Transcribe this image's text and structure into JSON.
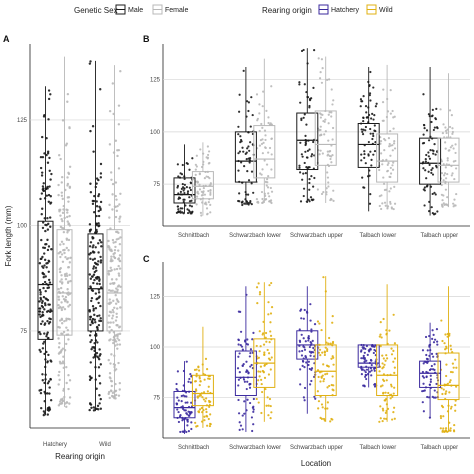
{
  "legend": {
    "sex_title": "Genetic Sex",
    "sex_items": [
      {
        "label": "Male",
        "color": "#1a1a1a"
      },
      {
        "label": "Female",
        "color": "#b8b8b8"
      }
    ],
    "origin_title": "Rearing origin",
    "origin_items": [
      {
        "label": "Hatchery",
        "color": "#3b2a9e"
      },
      {
        "label": "Wild",
        "color": "#e0b012"
      }
    ]
  },
  "chart_data": [
    {
      "panel": "A",
      "type": "box",
      "ylabel": "Fork length (mm)",
      "xlabel": "Rearing origin",
      "categories": [
        "Hatchery",
        "Wild"
      ],
      "ylim": [
        52,
        143
      ],
      "yticks": [
        75,
        100,
        125
      ],
      "grid": true,
      "series": [
        {
          "name": "Male",
          "color": "#1a1a1a",
          "boxes": [
            {
              "min": 55,
              "q1": 73,
              "median": 86,
              "q3": 101,
              "max": 133
            },
            {
              "min": 56,
              "q1": 75,
              "median": 85,
              "q3": 98,
              "max": 139
            }
          ]
        },
        {
          "name": "Female",
          "color": "#b8b8b8",
          "boxes": [
            {
              "min": 57,
              "q1": 74,
              "median": 84,
              "q3": 99,
              "max": 140
            },
            {
              "min": 59,
              "q1": 75,
              "median": 84,
              "q3": 99,
              "max": 138
            }
          ]
        }
      ]
    },
    {
      "panel": "B",
      "type": "box",
      "xlabel": "",
      "categories": [
        "Schnittbach",
        "Schwarzbach lower",
        "Schwarzbach upper",
        "Talbach lower",
        "Talbach upper"
      ],
      "ylim": [
        55,
        142
      ],
      "yticks": [
        75,
        100,
        125
      ],
      "grid": true,
      "series": [
        {
          "name": "Male",
          "color": "#1a1a1a",
          "boxes": [
            {
              "min": 61,
              "q1": 66,
              "median": 70,
              "q3": 78,
              "max": 94
            },
            {
              "min": 65,
              "q1": 76,
              "median": 86,
              "q3": 100,
              "max": 131
            },
            {
              "min": 66,
              "q1": 82,
              "median": 96,
              "q3": 109,
              "max": 140
            },
            {
              "min": 62,
              "q1": 83,
              "median": 94,
              "q3": 104,
              "max": 131
            },
            {
              "min": 60,
              "q1": 75,
              "median": 85,
              "q3": 97,
              "max": 131
            }
          ]
        },
        {
          "name": "Female",
          "color": "#b8b8b8",
          "boxes": [
            {
              "min": 60,
              "q1": 68,
              "median": 74,
              "q3": 81,
              "max": 95
            },
            {
              "min": 66,
              "q1": 78,
              "median": 87,
              "q3": 103,
              "max": 135
            },
            {
              "min": 66,
              "q1": 84,
              "median": 94,
              "q3": 110,
              "max": 136
            },
            {
              "min": 63,
              "q1": 76,
              "median": 86,
              "q3": 99,
              "max": 132
            },
            {
              "min": 64,
              "q1": 76,
              "median": 84,
              "q3": 97,
              "max": 128
            }
          ]
        }
      ]
    },
    {
      "panel": "C",
      "type": "box",
      "xlabel": "Location",
      "categories": [
        "Schnittbach",
        "Schwarzbach lower",
        "Schwarzbach upper",
        "Talbach lower",
        "Talbach upper"
      ],
      "ylim": [
        55,
        142
      ],
      "yticks": [
        75,
        100,
        125
      ],
      "grid": true,
      "series": [
        {
          "name": "Hatchery",
          "color": "#3b2a9e",
          "boxes": [
            {
              "min": 57,
              "q1": 65,
              "median": 70,
              "q3": 78,
              "max": 93
            },
            {
              "min": 58,
              "q1": 76,
              "median": 85,
              "q3": 98,
              "max": 130
            },
            {
              "min": 67,
              "q1": 94,
              "median": 101,
              "q3": 108,
              "max": 130
            },
            {
              "min": 80,
              "q1": 90,
              "median": 92,
              "q3": 101,
              "max": 101
            },
            {
              "min": 65,
              "q1": 80,
              "median": 87,
              "q3": 93,
              "max": 112
            }
          ]
        },
        {
          "name": "Wild",
          "color": "#e0b012",
          "boxes": [
            {
              "min": 60,
              "q1": 71,
              "median": 77,
              "q3": 86,
              "max": 110
            },
            {
              "min": 63,
              "q1": 80,
              "median": 92,
              "q3": 104,
              "max": 132
            },
            {
              "min": 63,
              "q1": 76,
              "median": 88,
              "q3": 101,
              "max": 135
            },
            {
              "min": 63,
              "q1": 76,
              "median": 86,
              "q3": 101,
              "max": 131
            },
            {
              "min": 58,
              "q1": 74,
              "median": 81,
              "q3": 97,
              "max": 130
            }
          ]
        }
      ]
    }
  ]
}
